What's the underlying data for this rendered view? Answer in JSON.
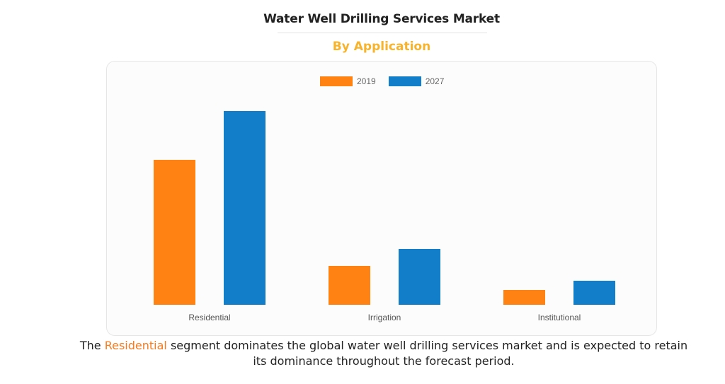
{
  "header": {
    "title": "Water Well Drilling Services Market",
    "subtitle": "By Application"
  },
  "caption": {
    "prefix": "The ",
    "highlight": "Residential",
    "line1_rest": " segment dominates the global water well drilling services market and is expected to retain",
    "line2": "its dominance throughout the forecast period."
  },
  "colors": {
    "series_2019": "#ff8213",
    "series_2027": "#127dc8",
    "subtitle": "#f7b32b",
    "highlight": "#f57c1f"
  },
  "chart_data": {
    "type": "bar",
    "title": "Water Well Drilling Services Market",
    "subtitle": "By Application",
    "xlabel": "",
    "ylabel": "",
    "categories": [
      "Residential",
      "Irrigation",
      "Institutional"
    ],
    "series": [
      {
        "name": "2019",
        "values": [
          205,
          55,
          21
        ]
      },
      {
        "name": "2027",
        "values": [
          274,
          79,
          34
        ]
      }
    ],
    "ylim": [
      0,
      274
    ],
    "y_axis_shown": false,
    "grid": false,
    "legend": "top-center",
    "units_note": "relative bar heights (no axis values shown)"
  }
}
